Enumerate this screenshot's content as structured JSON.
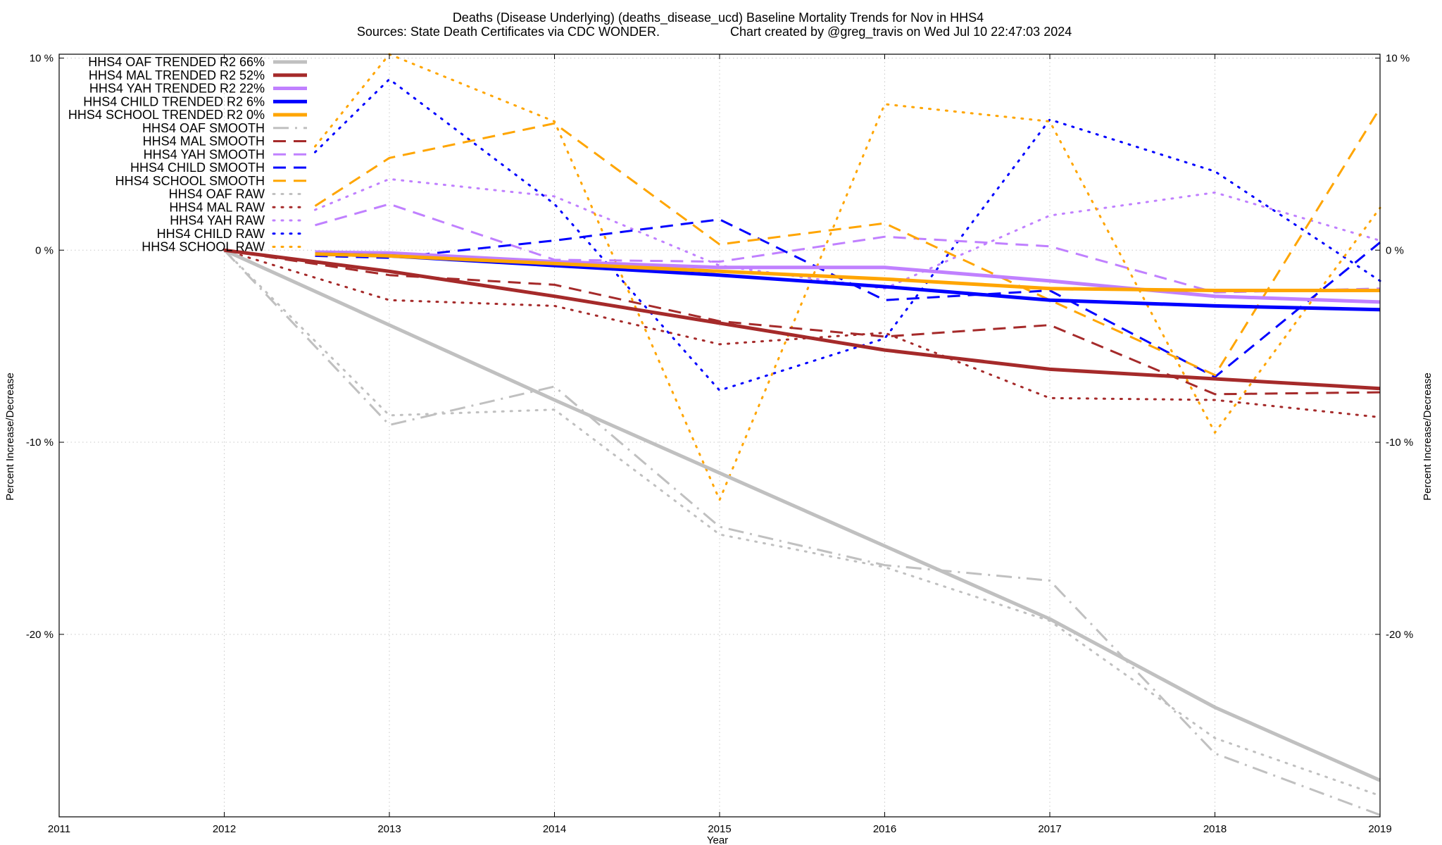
{
  "chart_data": {
    "type": "line",
    "title_line1": "Deaths (Disease Underlying) (deaths_disease_ucd)  Baseline Mortality Trends for Nov in HHS4",
    "title_line2_left": "Sources: State Death Certificates via CDC WONDER.",
    "title_line2_right": "Chart created by @greg_travis on Wed Jul 10 22:47:03 2024",
    "xlabel": "Year",
    "ylabel_left": "Percent Increase/Decrease",
    "ylabel_right": "Percent Increase/Decrease",
    "xlim": [
      2011,
      2019
    ],
    "ylim": [
      -29.5,
      10.2
    ],
    "x_ticks": [
      2011,
      2012,
      2013,
      2014,
      2015,
      2016,
      2017,
      2018,
      2019
    ],
    "x_tick_labels": [
      "2011",
      "2012",
      "2013",
      "2014",
      "2015",
      "2016",
      "2017",
      "2018",
      "2019"
    ],
    "y_ticks": [
      10,
      0,
      -10,
      -20
    ],
    "y_tick_labels": [
      "10 %",
      "0 %",
      "-10 %",
      "-20 %"
    ],
    "grid": true,
    "legend_position": "top-left",
    "series": [
      {
        "name": "HHS4 OAF TRENDED R2  66%",
        "color": "#c0c0c0",
        "style": "solid",
        "x": [
          2012,
          2013,
          2014,
          2015,
          2016,
          2017,
          2018,
          2019
        ],
        "values": [
          0,
          -3.9,
          -7.8,
          -11.6,
          -15.4,
          -19.2,
          -23.8,
          -27.6
        ]
      },
      {
        "name": "HHS4 MAL TRENDED R2  52%",
        "color": "#a52a2a",
        "style": "solid",
        "x": [
          2012,
          2013,
          2014,
          2015,
          2016,
          2017,
          2018,
          2019
        ],
        "values": [
          0,
          -1.1,
          -2.4,
          -3.8,
          -5.2,
          -6.2,
          -6.7,
          -7.2
        ]
      },
      {
        "name": "HHS4 YAH TRENDED R2  22%",
        "color": "#c080ff",
        "style": "solid",
        "x": [
          2012.55,
          2013,
          2014,
          2015,
          2016,
          2017,
          2018,
          2019
        ],
        "values": [
          -0.1,
          -0.15,
          -0.6,
          -0.9,
          -0.9,
          -1.6,
          -2.4,
          -2.7
        ]
      },
      {
        "name": "HHS4 CHILD TRENDED R2  6%",
        "color": "#0000ff",
        "style": "solid",
        "x": [
          2012.55,
          2013,
          2014,
          2015,
          2016,
          2017,
          2018,
          2019
        ],
        "values": [
          -0.2,
          -0.3,
          -0.8,
          -1.3,
          -1.9,
          -2.6,
          -2.9,
          -3.1
        ]
      },
      {
        "name": "HHS4 SCHOOL TRENDED R2  0%",
        "color": "#ffa500",
        "style": "solid",
        "x": [
          2012.55,
          2013,
          2014,
          2015,
          2016,
          2017,
          2018,
          2019
        ],
        "values": [
          -0.2,
          -0.3,
          -0.7,
          -1.1,
          -1.5,
          -2.0,
          -2.1,
          -2.1
        ]
      },
      {
        "name": "HHS4 OAF SMOOTH",
        "color": "#c0c0c0",
        "style": "dashdot",
        "x": [
          2012,
          2013,
          2014,
          2015,
          2016,
          2017,
          2018,
          2019
        ],
        "values": [
          0,
          -9.1,
          -7.1,
          -14.4,
          -16.4,
          -17.2,
          -26.2,
          -29.4
        ]
      },
      {
        "name": "HHS4 MAL SMOOTH",
        "color": "#a52a2a",
        "style": "dashed",
        "x": [
          2012,
          2013,
          2014,
          2015,
          2016,
          2017,
          2018,
          2019
        ],
        "values": [
          0,
          -1.3,
          -1.8,
          -3.7,
          -4.5,
          -3.9,
          -7.5,
          -7.4
        ]
      },
      {
        "name": "HHS4 YAH SMOOTH",
        "color": "#c080ff",
        "style": "dashed",
        "x": [
          2012.55,
          2013,
          2014,
          2015,
          2016,
          2017,
          2018,
          2019
        ],
        "values": [
          1.3,
          2.4,
          -0.5,
          -0.6,
          0.7,
          0.2,
          -2.2,
          -2.0
        ]
      },
      {
        "name": "HHS4 CHILD SMOOTH",
        "color": "#0000ff",
        "style": "dashed",
        "x": [
          2012.55,
          2013,
          2014,
          2015,
          2016,
          2017,
          2018,
          2019
        ],
        "values": [
          -0.3,
          -0.4,
          0.5,
          1.6,
          -2.6,
          -2.1,
          -6.6,
          0.4
        ]
      },
      {
        "name": "HHS4 SCHOOL SMOOTH",
        "color": "#ffa500",
        "style": "dashed",
        "x": [
          2012.55,
          2013,
          2014,
          2015,
          2016,
          2017,
          2018,
          2019
        ],
        "values": [
          2.3,
          4.8,
          6.6,
          0.3,
          1.4,
          -2.6,
          -6.5,
          7.4
        ]
      },
      {
        "name": "HHS4 OAF RAW",
        "color": "#c0c0c0",
        "style": "dotted",
        "x": [
          2012,
          2013,
          2014,
          2015,
          2016,
          2017,
          2018,
          2019
        ],
        "values": [
          0,
          -8.6,
          -8.3,
          -14.8,
          -16.5,
          -19.3,
          -25.4,
          -28.4
        ]
      },
      {
        "name": "HHS4 MAL RAW",
        "color": "#a52a2a",
        "style": "dotted",
        "x": [
          2012,
          2013,
          2014,
          2015,
          2016,
          2017,
          2018,
          2019
        ],
        "values": [
          0,
          -2.6,
          -2.9,
          -4.9,
          -4.3,
          -7.7,
          -7.8,
          -8.7
        ]
      },
      {
        "name": "HHS4 YAH RAW",
        "color": "#c080ff",
        "style": "dotted",
        "x": [
          2012.55,
          2013,
          2014,
          2015,
          2016,
          2017,
          2018,
          2019
        ],
        "values": [
          2.1,
          3.7,
          2.8,
          -0.8,
          -2.0,
          1.8,
          3.0,
          0.5
        ]
      },
      {
        "name": "HHS4 CHILD RAW",
        "color": "#0000ff",
        "style": "dotted",
        "x": [
          2012.55,
          2013,
          2014,
          2015,
          2016,
          2017,
          2018,
          2019
        ],
        "values": [
          5.1,
          8.9,
          2.4,
          -7.3,
          -4.6,
          6.8,
          4.1,
          -1.6
        ]
      },
      {
        "name": "HHS4 SCHOOL RAW",
        "color": "#ffa500",
        "style": "dotted",
        "x": [
          2012.55,
          2013,
          2014,
          2015,
          2016,
          2017,
          2018,
          2019
        ],
        "values": [
          5.4,
          10.2,
          6.7,
          -13.0,
          7.6,
          6.7,
          -9.5,
          2.2
        ]
      }
    ]
  }
}
